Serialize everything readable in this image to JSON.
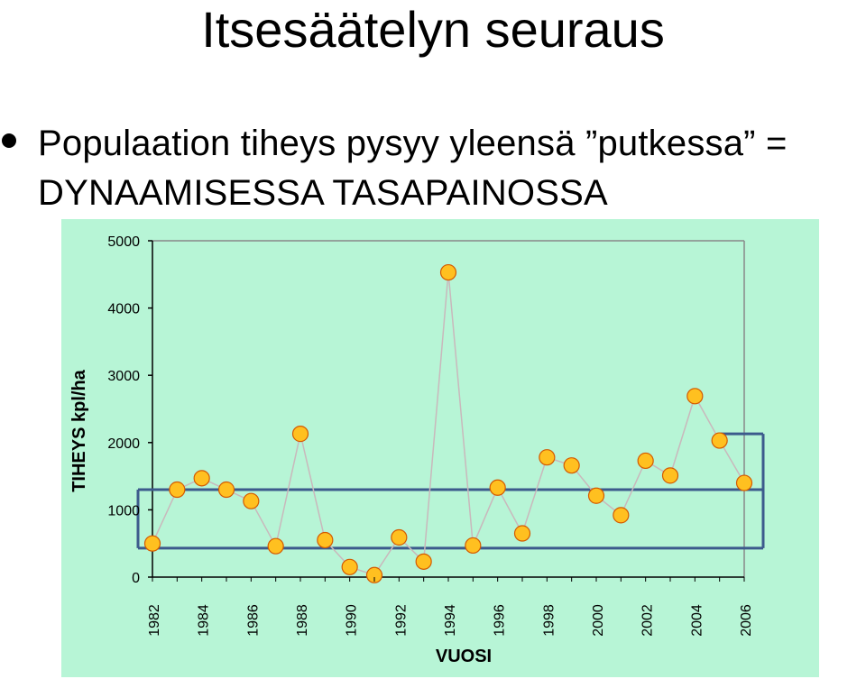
{
  "slide": {
    "title": "Itsesäätelyn seuraus",
    "bullet_line1": "Populaation tiheys pysyy yleensä ”putkessa” =",
    "bullet_line2": "DYNAAMISESSA TASAPAINOSSA"
  },
  "colors": {
    "chart_background": "#b7f5d6",
    "marker_fill": "#ffc020",
    "marker_stroke": "#d45a00",
    "series_line": "#c9b8bc",
    "band_lines": "#3c5a8c"
  },
  "chart_data": {
    "type": "line",
    "xlabel": "VUOSI",
    "ylabel": "TIHEYS kpl/ha",
    "ylim": [
      0,
      5000
    ],
    "yticks": [
      0,
      1000,
      2000,
      3000,
      4000,
      5000
    ],
    "xlim": [
      1982,
      2006
    ],
    "xticks": [
      1982,
      1984,
      1986,
      1988,
      1990,
      1992,
      1994,
      1996,
      1998,
      2000,
      2002,
      2004,
      2006
    ],
    "grid": false,
    "legend": "none",
    "series": [
      {
        "x": [
          1982,
          1983,
          1984,
          1985,
          1986,
          1987,
          1988,
          1989,
          1990,
          1991,
          1992,
          1993,
          1994,
          1995,
          1996,
          1997,
          1998,
          1999,
          2000,
          2001,
          2002,
          2003,
          2004,
          2005,
          2006
        ],
        "values": [
          500,
          1300,
          1470,
          1300,
          1130,
          460,
          2130,
          550,
          150,
          30,
          590,
          230,
          4530,
          470,
          1330,
          650,
          1780,
          1660,
          1210,
          920,
          1730,
          1510,
          2690,
          2030,
          1400
        ]
      }
    ],
    "band": {
      "lower": 430,
      "upper": 1300,
      "upper_start": 2130
    }
  }
}
